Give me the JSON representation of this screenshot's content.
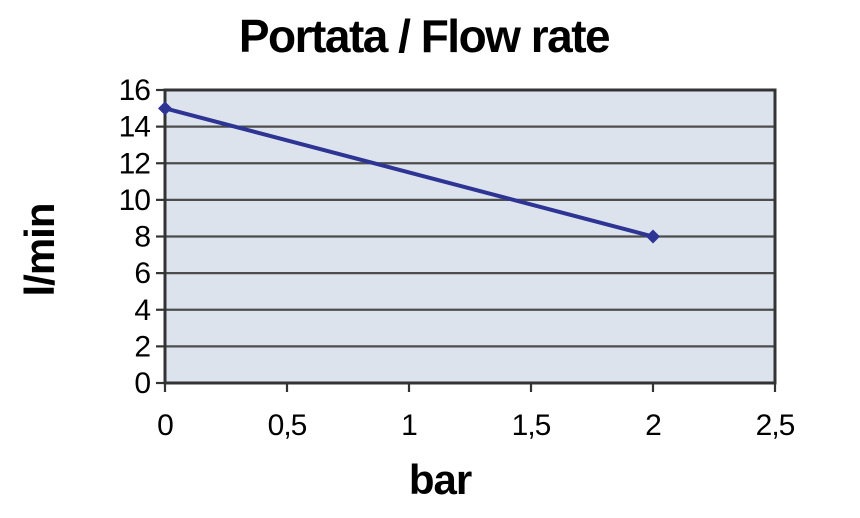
{
  "chart_data": {
    "type": "line",
    "title": "Portata / Flow rate",
    "xlabel": "bar",
    "ylabel": "l/min",
    "series": [
      {
        "points": [
          {
            "x": 0,
            "y": 15
          },
          {
            "x": 2,
            "y": 8
          }
        ]
      }
    ],
    "xlim": [
      0,
      2.5
    ],
    "ylim": [
      0,
      16
    ],
    "x_ticks": [
      0,
      0.5,
      1,
      1.5,
      2,
      2.5
    ],
    "x_tick_labels": [
      "0",
      "0,5",
      "1",
      "1,5",
      "2",
      "2,5"
    ],
    "y_ticks": [
      0,
      2,
      4,
      6,
      8,
      10,
      12,
      14,
      16
    ],
    "y_tick_labels": [
      "0",
      "2",
      "4",
      "6",
      "8",
      "10",
      "12",
      "14",
      "16"
    ],
    "grid": "horizontal",
    "legend": false,
    "marker": "diamond",
    "colors": {
      "line": "#2e3494",
      "plot_bg": "#dce3ed",
      "grid": "#4d4d4d",
      "axis": "#333333",
      "text": "#000000",
      "background": "#ffffff"
    }
  }
}
